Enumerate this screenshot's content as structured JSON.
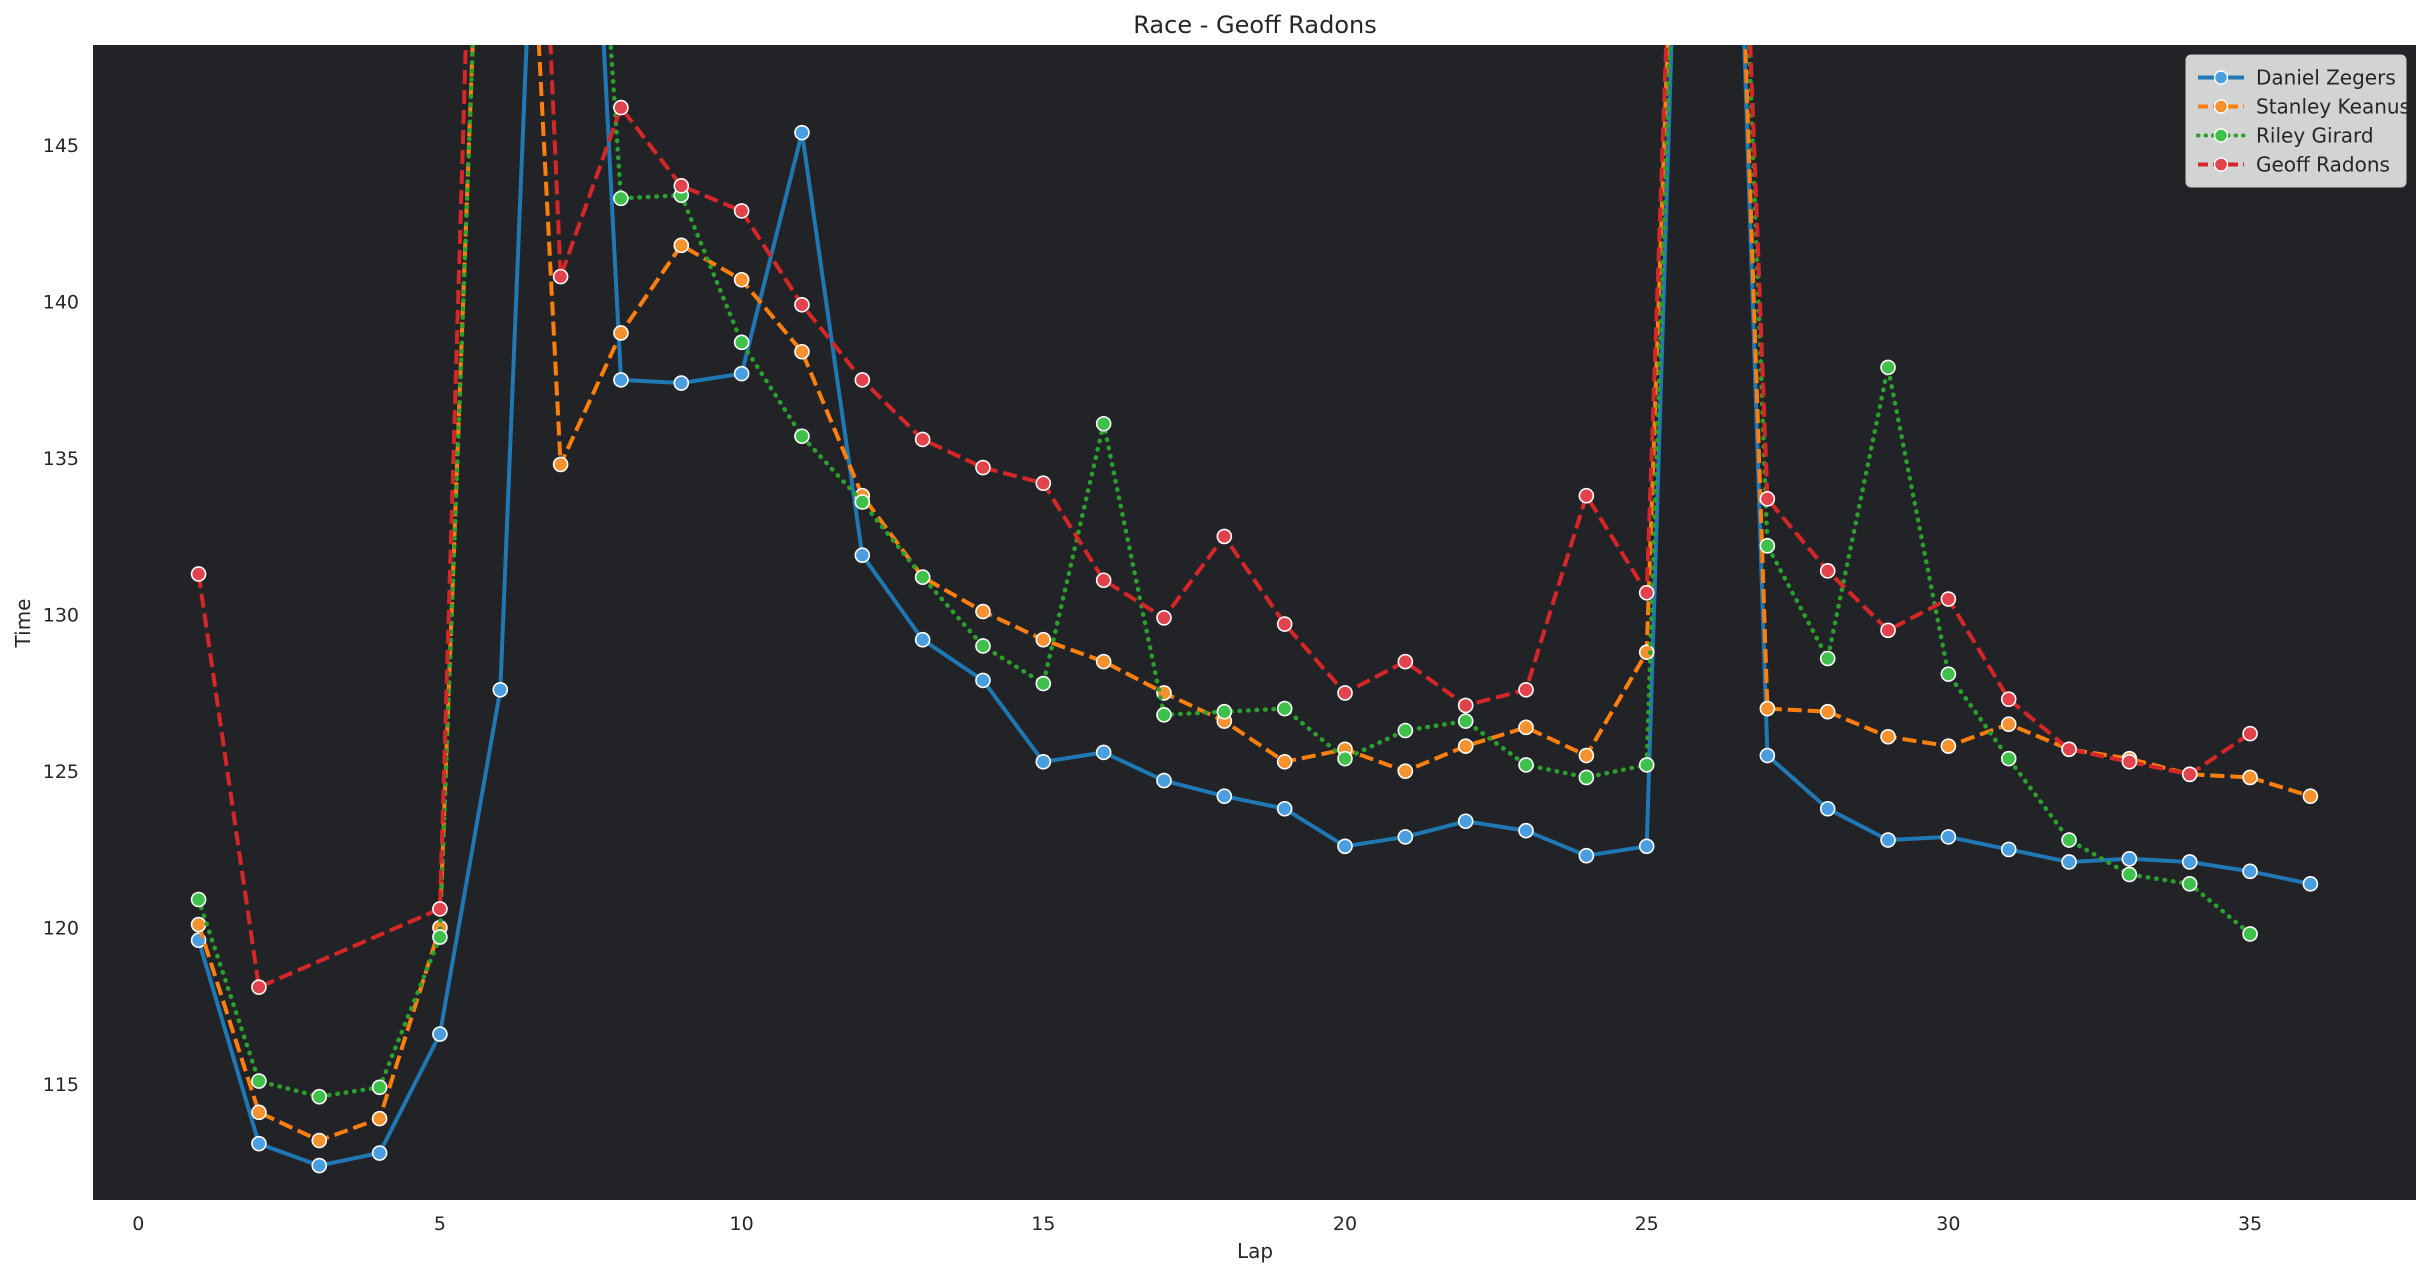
{
  "chart_data": {
    "type": "line",
    "title": "Race - Geoff Radons",
    "xlabel": "Lap",
    "ylabel": "Time",
    "xlim": [
      -0.75,
      37.75
    ],
    "ylim": [
      111.3,
      148.2
    ],
    "xticks": [
      0,
      5,
      10,
      15,
      20,
      25,
      30,
      35
    ],
    "yticks": [
      115,
      120,
      125,
      130,
      135,
      140,
      145
    ],
    "grid": false,
    "legend_position": "top-right",
    "plot_background": "#212327",
    "series": [
      {
        "name": "Daniel Zegers",
        "color": "#1f77b4",
        "marker_fill": "#4a9ee0",
        "dash": "solid",
        "x": [
          1,
          2,
          3,
          4,
          5,
          6,
          7,
          8,
          9,
          10,
          11,
          12,
          13,
          14,
          15,
          16,
          17,
          18,
          19,
          20,
          21,
          22,
          23,
          24,
          25,
          26,
          27,
          28,
          29,
          30,
          31,
          32,
          33,
          34,
          35,
          36
        ],
        "y": [
          119.6,
          113.1,
          112.4,
          112.8,
          116.6,
          127.6,
          175,
          137.5,
          137.4,
          137.7,
          145.4,
          131.9,
          129.2,
          127.9,
          125.3,
          125.6,
          124.7,
          124.2,
          123.8,
          122.6,
          122.9,
          123.4,
          123.1,
          122.3,
          122.6,
          185,
          125.5,
          123.8,
          122.8,
          122.9,
          122.5,
          122.1,
          122.2,
          122.1,
          121.8,
          121.4
        ]
      },
      {
        "name": "Stanley Keanus",
        "color": "#ff7f0e",
        "marker_fill": "#f5912e",
        "dash": "dashed",
        "x": [
          1,
          2,
          3,
          4,
          5,
          6,
          7,
          8,
          9,
          10,
          11,
          12,
          13,
          14,
          15,
          16,
          17,
          18,
          19,
          20,
          21,
          22,
          23,
          24,
          25,
          26,
          27,
          28,
          29,
          30,
          31,
          32,
          33,
          34,
          35,
          36
        ],
        "y": [
          120.1,
          114.1,
          113.2,
          113.9,
          120.0,
          172,
          134.8,
          139.0,
          141.8,
          140.7,
          138.4,
          133.8,
          131.2,
          130.1,
          129.2,
          128.5,
          127.5,
          126.6,
          125.3,
          125.7,
          125.0,
          125.8,
          126.4,
          125.5,
          128.8,
          185,
          127.0,
          126.9,
          126.1,
          125.8,
          126.5,
          125.7,
          125.4,
          124.9,
          124.8,
          124.2
        ]
      },
      {
        "name": "Riley Girard",
        "color": "#2ca02c",
        "marker_fill": "#3fc04a",
        "dash": "dotted",
        "x": [
          1,
          2,
          3,
          4,
          5,
          6,
          7,
          8,
          9,
          10,
          11,
          12,
          13,
          14,
          15,
          16,
          17,
          18,
          19,
          20,
          21,
          22,
          23,
          24,
          25,
          26,
          27,
          28,
          29,
          30,
          31,
          32,
          33,
          34,
          35
        ],
        "y": [
          120.9,
          115.1,
          114.6,
          114.9,
          119.7,
          172,
          172,
          143.3,
          143.4,
          138.7,
          135.7,
          133.6,
          131.2,
          129.0,
          127.8,
          136.1,
          126.8,
          126.9,
          127.0,
          125.4,
          126.3,
          126.6,
          125.2,
          124.8,
          125.2,
          185,
          132.2,
          128.6,
          137.9,
          128.1,
          125.4,
          122.8,
          121.7,
          121.4,
          119.8
        ]
      },
      {
        "name": "Geoff Radons",
        "color": "#d62728",
        "marker_fill": "#e2424c",
        "dash": "dashed",
        "x": [
          1,
          2,
          5,
          6,
          7,
          8,
          9,
          10,
          11,
          12,
          13,
          14,
          15,
          16,
          17,
          18,
          19,
          20,
          21,
          22,
          23,
          24,
          25,
          26,
          27,
          28,
          29,
          30,
          31,
          32,
          33,
          34,
          35
        ],
        "y": [
          131.3,
          118.1,
          120.6,
          185,
          140.8,
          146.2,
          143.7,
          142.9,
          139.9,
          137.5,
          135.6,
          134.7,
          134.2,
          131.1,
          129.9,
          132.5,
          129.7,
          127.5,
          128.5,
          127.1,
          127.6,
          133.8,
          130.7,
          185,
          133.7,
          131.4,
          129.5,
          130.5,
          127.3,
          125.7,
          125.3,
          124.9,
          126.2
        ]
      }
    ]
  }
}
